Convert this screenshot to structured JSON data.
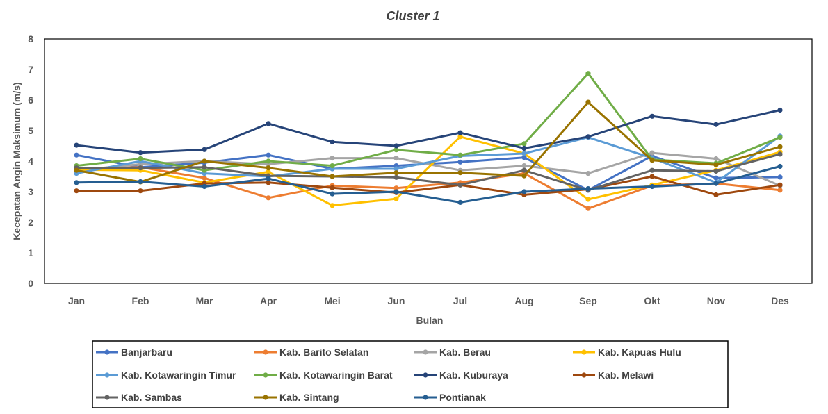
{
  "chart_data": {
    "type": "line",
    "title": "Cluster 1",
    "xlabel": "Bulan",
    "ylabel": "Kecepatan Angin Maksimum (m/s)",
    "ylim": [
      0,
      8
    ],
    "yticks": [
      "0",
      "1",
      "2",
      "3",
      "4",
      "5",
      "6",
      "7",
      "8"
    ],
    "grid": false,
    "legend_position": "bottom",
    "categories": [
      "Jan",
      "Feb",
      "Mar",
      "Apr",
      "Mei",
      "Jun",
      "Jul",
      "Aug",
      "Sep",
      "Okt",
      "Nov",
      "Des"
    ],
    "series": [
      {
        "name": "Banjarbaru",
        "color": "#4472C4",
        "values": [
          4.2,
          3.8,
          3.95,
          4.2,
          3.75,
          3.85,
          3.97,
          4.12,
          3.05,
          4.17,
          3.45,
          3.48
        ]
      },
      {
        "name": "Kab. Barito Selatan",
        "color": "#ED7D31",
        "values": [
          3.75,
          3.8,
          3.45,
          2.8,
          3.2,
          3.12,
          3.3,
          3.6,
          2.45,
          3.2,
          3.27,
          3.05
        ]
      },
      {
        "name": "Kab. Berau",
        "color": "#A5A5A5",
        "values": [
          3.7,
          3.9,
          4.0,
          3.9,
          4.1,
          4.1,
          3.7,
          3.85,
          3.6,
          4.27,
          4.08,
          3.2
        ]
      },
      {
        "name": "Kab. Kapuas Hulu",
        "color": "#FFC000",
        "values": [
          3.72,
          3.7,
          3.3,
          3.65,
          2.55,
          2.77,
          4.8,
          4.25,
          2.75,
          3.22,
          3.7,
          4.3
        ]
      },
      {
        "name": "Kab. Kotawaringin Timur",
        "color": "#5B9BD5",
        "values": [
          3.6,
          4.0,
          3.6,
          3.5,
          3.75,
          3.75,
          4.17,
          4.25,
          4.78,
          4.1,
          3.3,
          4.82
        ]
      },
      {
        "name": "Kab. Kotawaringin Barat",
        "color": "#70AD47",
        "values": [
          3.85,
          4.08,
          3.7,
          4.0,
          3.85,
          4.37,
          4.2,
          4.57,
          6.87,
          4.05,
          3.93,
          4.78
        ]
      },
      {
        "name": "Kab. Kuburaya",
        "color": "#264478",
        "values": [
          4.52,
          4.28,
          4.38,
          5.23,
          4.63,
          4.5,
          4.93,
          4.42,
          4.8,
          5.47,
          5.2,
          5.67
        ]
      },
      {
        "name": "Kab. Melawi",
        "color": "#9E480E",
        "values": [
          3.03,
          3.03,
          3.27,
          3.3,
          3.13,
          2.97,
          3.22,
          2.9,
          3.08,
          3.5,
          2.9,
          3.22
        ]
      },
      {
        "name": "Kab. Sambas",
        "color": "#636363",
        "values": [
          3.78,
          3.78,
          3.8,
          3.52,
          3.5,
          3.47,
          3.22,
          3.7,
          3.05,
          3.7,
          3.67,
          4.23
        ]
      },
      {
        "name": "Kab. Sintang",
        "color": "#997300",
        "values": [
          3.7,
          3.32,
          4.0,
          3.78,
          3.5,
          3.62,
          3.62,
          3.52,
          5.93,
          4.03,
          3.88,
          4.47
        ]
      },
      {
        "name": "Pontianak",
        "color": "#255E91",
        "values": [
          3.3,
          3.33,
          3.17,
          3.43,
          2.93,
          3.0,
          2.65,
          3.0,
          3.1,
          3.17,
          3.27,
          3.83
        ]
      }
    ]
  }
}
